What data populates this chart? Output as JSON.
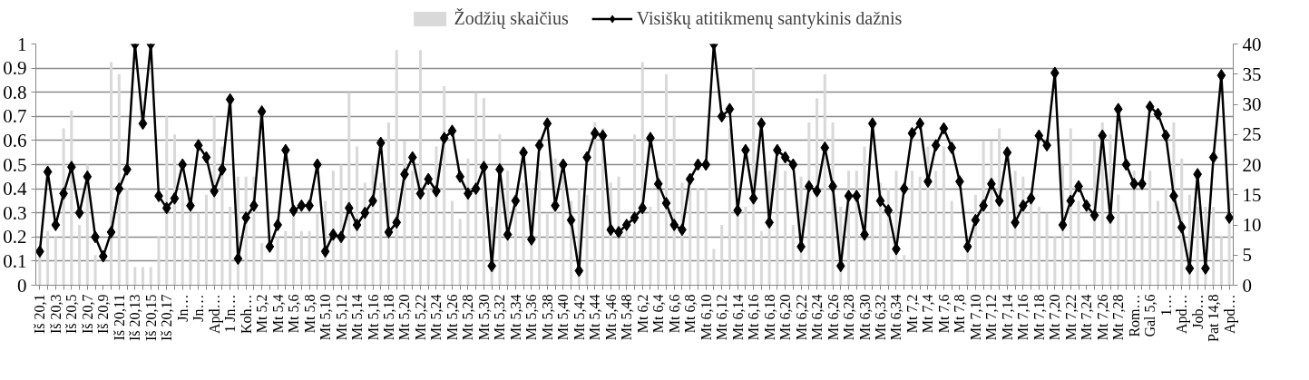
{
  "chart_data": {
    "type": "bar",
    "legend": "top",
    "grid": "y",
    "marker": "diamond",
    "line_style": "solid",
    "categories": [
      "Iš 20,1",
      null,
      "Iš 20,3",
      null,
      "Iš 20,5",
      null,
      "Iš 20,7",
      null,
      "Iš 20,9",
      null,
      "Iš 20,11",
      null,
      "Iš 20,13",
      null,
      "Iš 20,15",
      null,
      "Iš 20,17",
      null,
      "Jn…",
      null,
      "Jn…",
      null,
      "Apd…",
      null,
      "1 Jn…",
      null,
      "Koh…",
      null,
      "Mt 5,2",
      null,
      "Mt 5,4",
      null,
      "Mt 5,6",
      null,
      "Mt 5,8",
      null,
      "Mt 5,10",
      null,
      "Mt 5,12",
      null,
      "Mt 5,14",
      null,
      "Mt 5,16",
      null,
      "Mt 5,18",
      null,
      "Mt 5,20",
      null,
      "Mt 5,22",
      null,
      "Mt 5,24",
      null,
      "Mt 5,26",
      null,
      "Mt 5,28",
      null,
      "Mt 5,30",
      null,
      "Mt 5,32",
      null,
      "Mt 5,34",
      null,
      "Mt 5,36",
      null,
      "Mt 5,38",
      null,
      "Mt 5,40",
      null,
      "Mt 5,42",
      null,
      "Mt 5,44",
      null,
      "Mt 5,46",
      null,
      "Mt 5,48",
      null,
      "Mt 6,2",
      null,
      "Mt 6,4",
      null,
      "Mt 6,6",
      null,
      "Mt 6,8",
      null,
      "Mt 6,10",
      null,
      "Mt 6,12",
      null,
      "Mt 6,14",
      null,
      "Mt 6,16",
      null,
      "Mt 6,18",
      null,
      "Mt 6,20",
      null,
      "Mt 6,22",
      null,
      "Mt 6,24",
      null,
      "Mt 6,26",
      null,
      "Mt 6,28",
      null,
      "Mt 6,30",
      null,
      "Mt 6,32",
      null,
      "Mt 6,34",
      null,
      "Mt 7,2",
      null,
      "Mt 7,4",
      null,
      "Mt 7,6",
      null,
      "Mt 7,8",
      null,
      "Mt 7,10",
      null,
      "Mt 7,12",
      null,
      "Mt 7,14",
      null,
      "Mt 7,16",
      null,
      "Mt 7,18",
      null,
      "Mt 7,20",
      null,
      "Mt 7,22",
      null,
      "Mt 7,24",
      null,
      "Mt 7,26",
      null,
      "Mt 7,28",
      null,
      "Rom…",
      null,
      "Gal 5,6",
      null,
      "1…",
      null,
      "Apd…",
      null,
      "Job…",
      null,
      "Pat 14,8",
      null,
      "Apd…"
    ],
    "ylim": [
      0,
      1
    ],
    "yticks": [
      0,
      0.1,
      0.2,
      0.3,
      0.4,
      0.5,
      0.6,
      0.7,
      0.8,
      0.9,
      1
    ],
    "y2lim": [
      0,
      40
    ],
    "y2ticks": [
      0,
      5,
      10,
      15,
      20,
      25,
      30,
      35,
      40
    ],
    "series": [
      {
        "name": "Žodžių skaičius",
        "axis": "y2",
        "color": "#d9d9d9",
        "values": [
          5,
          9,
          8,
          26,
          29,
          10,
          20,
          5,
          null,
          37,
          35,
          16,
          3,
          3,
          3,
          8,
          28,
          25,
          16,
          12,
          12,
          15,
          28,
          23,
          13,
          18,
          18,
          18,
          7,
          null,
          8,
          9,
          12,
          9,
          9,
          12,
          14,
          19,
          20,
          32,
          23,
          17,
          20,
          17,
          27,
          39,
          24,
          19,
          39,
          16,
          23,
          33,
          14,
          11,
          21,
          32,
          31,
          13,
          25,
          19,
          15,
          17,
          16,
          19,
          12,
          21,
          18,
          14,
          16,
          15,
          27,
          26,
          17,
          18,
          9,
          25,
          37,
          13,
          19,
          35,
          28,
          17,
          16,
          16,
          16,
          6,
          10,
          26,
          12,
          13,
          36,
          9,
          19,
          21,
          19,
          10,
          18,
          27,
          31,
          35,
          27,
          13,
          19,
          19,
          23,
          12,
          17,
          16,
          19,
          5,
          19,
          18,
          23,
          19,
          23,
          14,
          null,
          8,
          15,
          24,
          24,
          26,
          16,
          19,
          18,
          14,
          13,
          12,
          8,
          20,
          26,
          14,
          null,
          24,
          27,
          25,
          15,
          12,
          19,
          12,
          19,
          14,
          16,
          27,
          21,
          15,
          13,
          13,
          13,
          8,
          16
        ]
      },
      {
        "name": "Visiškų atitikmenų santykinis dažnis",
        "type": "line",
        "color": "#000000",
        "values": [
          0.14,
          0.47,
          0.25,
          0.38,
          0.49,
          0.3,
          0.45,
          0.2,
          0.12,
          0.22,
          0.4,
          0.48,
          1.0,
          0.67,
          1.0,
          0.37,
          0.32,
          0.36,
          0.5,
          0.33,
          0.58,
          0.53,
          0.39,
          0.48,
          0.77,
          0.11,
          0.28,
          0.33,
          0.72,
          0.16,
          0.25,
          0.56,
          0.31,
          0.33,
          0.33,
          0.5,
          0.14,
          0.21,
          0.2,
          0.32,
          0.25,
          0.3,
          0.35,
          0.59,
          0.22,
          0.26,
          0.46,
          0.53,
          0.38,
          0.44,
          0.39,
          0.61,
          0.64,
          0.45,
          0.38,
          0.4,
          0.49,
          0.08,
          0.48,
          0.21,
          0.35,
          0.55,
          0.19,
          0.58,
          0.67,
          0.33,
          0.5,
          0.27,
          0.06,
          0.53,
          0.63,
          0.62,
          0.23,
          0.22,
          0.25,
          0.28,
          0.32,
          0.61,
          0.42,
          0.34,
          0.25,
          0.23,
          0.44,
          0.5,
          0.5,
          1.0,
          0.7,
          0.73,
          0.31,
          0.56,
          0.36,
          0.67,
          0.26,
          0.56,
          0.53,
          0.5,
          0.16,
          0.41,
          0.39,
          0.57,
          0.41,
          0.08,
          0.37,
          0.37,
          0.21,
          0.67,
          0.35,
          0.31,
          0.15,
          0.4,
          0.63,
          0.67,
          0.43,
          0.58,
          0.65,
          0.57,
          0.43,
          0.16,
          0.27,
          0.33,
          0.42,
          0.35,
          0.55,
          0.26,
          0.33,
          0.36,
          0.62,
          0.58,
          0.88,
          0.25,
          0.35,
          0.41,
          0.33,
          0.29,
          0.62,
          0.28,
          0.73,
          0.5,
          0.42,
          0.42,
          0.74,
          0.71,
          0.62,
          0.37,
          0.24,
          0.07,
          0.46,
          0.07,
          0.53,
          0.87,
          0.28
        ]
      }
    ]
  }
}
